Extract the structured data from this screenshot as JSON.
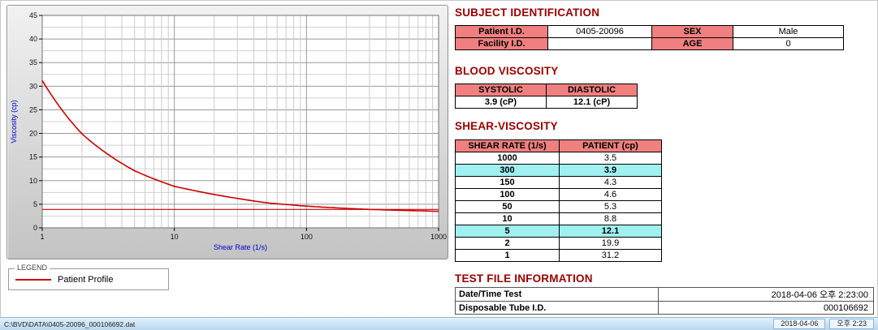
{
  "chart_data": {
    "type": "line",
    "title": "",
    "xlabel": "Shear Rate (1/s)",
    "ylabel": "Viscosity (cp)",
    "x_scale": "log",
    "xlim": [
      1,
      1000
    ],
    "ylim": [
      0,
      45
    ],
    "x_ticks": [
      1,
      10,
      100,
      1000
    ],
    "y_ticks": [
      0,
      5,
      10,
      15,
      20,
      25,
      30,
      35,
      40,
      45
    ],
    "grid": true,
    "legend_position": "below-left",
    "series": [
      {
        "name": "Patient Profile",
        "color": "#cc0000",
        "x": [
          1,
          2,
          5,
          10,
          50,
          100,
          150,
          300,
          1000
        ],
        "y": [
          31.2,
          19.9,
          12.1,
          8.8,
          5.3,
          4.6,
          4.3,
          3.9,
          3.5
        ]
      }
    ],
    "reference_line": {
      "y": 3.9,
      "color": "#cc0000"
    }
  },
  "legend": {
    "title": "LEGEND",
    "item": "Patient Profile"
  },
  "subject": {
    "heading": "SUBJECT IDENTIFICATION",
    "rows": [
      {
        "label1": "Patient I.D.",
        "value1": "0405-20096",
        "label2": "SEX",
        "value2": "Male"
      },
      {
        "label1": "Facility I.D.",
        "value1": "",
        "label2": "AGE",
        "value2": "0"
      }
    ]
  },
  "blood_viscosity": {
    "heading": "BLOOD VISCOSITY",
    "columns": [
      "SYSTOLIC",
      "DIASTOLIC"
    ],
    "values": [
      "3.9 (cP)",
      "12.1 (cP)"
    ]
  },
  "shear_viscosity": {
    "heading": "SHEAR-VISCOSITY",
    "columns": [
      "SHEAR RATE (1/s)",
      "PATIENT (cp)"
    ],
    "rows": [
      {
        "rate": "1000",
        "value": "3.5",
        "highlight": false
      },
      {
        "rate": "300",
        "value": "3.9",
        "highlight": true
      },
      {
        "rate": "150",
        "value": "4.3",
        "highlight": false
      },
      {
        "rate": "100",
        "value": "4.6",
        "highlight": false
      },
      {
        "rate": "50",
        "value": "5.3",
        "highlight": false
      },
      {
        "rate": "10",
        "value": "8.8",
        "highlight": false
      },
      {
        "rate": "5",
        "value": "12.1",
        "highlight": true
      },
      {
        "rate": "2",
        "value": "19.9",
        "highlight": false
      },
      {
        "rate": "1",
        "value": "31.2",
        "highlight": false
      }
    ]
  },
  "test_file": {
    "heading": "TEST FILE INFORMATION",
    "rows": [
      {
        "label": "Date/Time Test",
        "value": "2018-04-06  오후 2:23:00"
      },
      {
        "label": "Disposable Tube I.D.",
        "value": "000106692"
      }
    ]
  },
  "status_bar": {
    "left_text": "C:\\BVD\\DATA\\0405-20096_000106692.dat",
    "date": "2018-04-06",
    "time": "오후 2:23"
  },
  "colors": {
    "heading": "#990000",
    "header_bg": "#f08080",
    "highlight_bg": "#a0f0f0",
    "curve": "#cc0000",
    "axis_label": "#0000cc"
  }
}
